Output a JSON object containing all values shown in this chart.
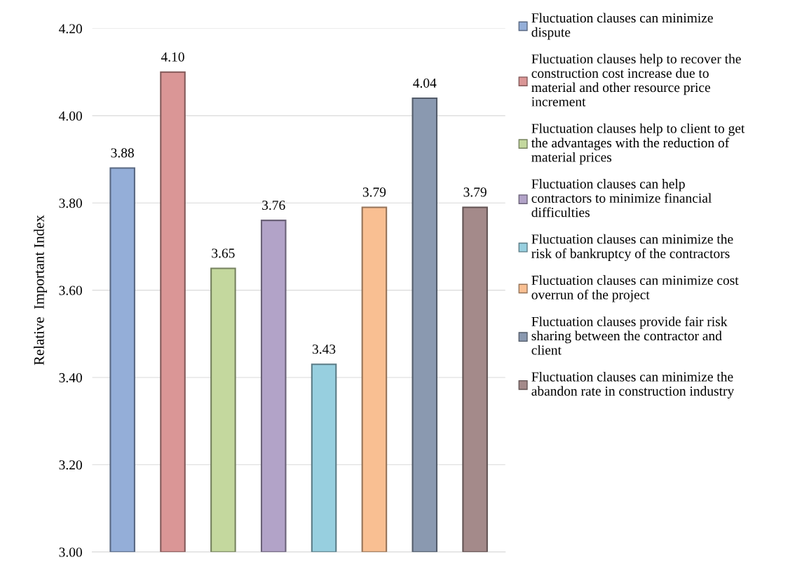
{
  "chart_data": {
    "type": "bar",
    "ylabel": "Relative  Important Index",
    "categories": [
      null,
      null,
      null,
      null,
      null,
      null,
      null,
      null
    ],
    "series": [
      {
        "name": "Fluctuation clauses can minimize\ndispute",
        "color": "#94aed8",
        "values": [
          3.88,
          null,
          null,
          null,
          null,
          null,
          null,
          null
        ],
        "value_labels": [
          "3.88",
          null,
          null,
          null,
          null,
          null,
          null,
          null
        ]
      },
      {
        "name": "Fluctuation clauses help to recover the\nconstruction cost increase due to\nmaterial and other resource price\nincrement",
        "color": "#da9696",
        "values": [
          null,
          4.1,
          null,
          null,
          null,
          null,
          null,
          null
        ],
        "value_labels": [
          null,
          "4.10",
          null,
          null,
          null,
          null,
          null,
          null
        ]
      },
      {
        "name": "Fluctuation clauses help to client to get\nthe advantages with the reduction of\nmaterial prices",
        "color": "#c4d89e",
        "values": [
          null,
          null,
          3.65,
          null,
          null,
          null,
          null,
          null
        ],
        "value_labels": [
          null,
          null,
          "3.65",
          null,
          null,
          null,
          null,
          null
        ]
      },
      {
        "name": "Fluctuation clauses can help\ncontractors to minimize financial\ndifficulties",
        "color": "#b2a3c8",
        "values": [
          null,
          null,
          null,
          3.76,
          null,
          null,
          null,
          null
        ],
        "value_labels": [
          null,
          null,
          null,
          "3.76",
          null,
          null,
          null,
          null
        ]
      },
      {
        "name": "Fluctuation clauses can minimize the\nrisk of bankruptcy of the contractors",
        "color": "#97cfdf",
        "values": [
          null,
          null,
          null,
          null,
          3.43,
          null,
          null,
          null
        ],
        "value_labels": [
          null,
          null,
          null,
          null,
          "3.43",
          null,
          null,
          null
        ]
      },
      {
        "name": "Fluctuation clauses can minimize cost\noverrun of the project",
        "color": "#f9bf92",
        "values": [
          null,
          null,
          null,
          null,
          null,
          3.79,
          null,
          null
        ],
        "value_labels": [
          null,
          null,
          null,
          null,
          null,
          "3.79",
          null,
          null
        ]
      },
      {
        "name": "Fluctuation clauses provide fair risk\nsharing between the contractor and\nclient",
        "color": "#8a99b0",
        "values": [
          null,
          null,
          null,
          null,
          null,
          null,
          4.04,
          null
        ],
        "value_labels": [
          null,
          null,
          null,
          null,
          null,
          null,
          "4.04",
          null
        ]
      },
      {
        "name": "Fluctuation clauses can minimize the\nabandon rate in construction industry",
        "color": "#a48a8a",
        "values": [
          null,
          null,
          null,
          null,
          null,
          null,
          null,
          3.79
        ],
        "value_labels": [
          null,
          null,
          null,
          null,
          null,
          null,
          null,
          "3.79"
        ]
      }
    ],
    "ylim": [
      3.0,
      4.2
    ],
    "yticks": [
      {
        "value": 3.0,
        "label": "3.00"
      },
      {
        "value": 3.2,
        "label": "3.20"
      },
      {
        "value": 3.4,
        "label": "3.40"
      },
      {
        "value": 3.6,
        "label": "3.60"
      },
      {
        "value": 3.8,
        "label": "3.80"
      },
      {
        "value": 4.0,
        "label": "4.00"
      },
      {
        "value": 4.2,
        "label": "4.20"
      }
    ],
    "grid": "y",
    "legend": "right"
  }
}
